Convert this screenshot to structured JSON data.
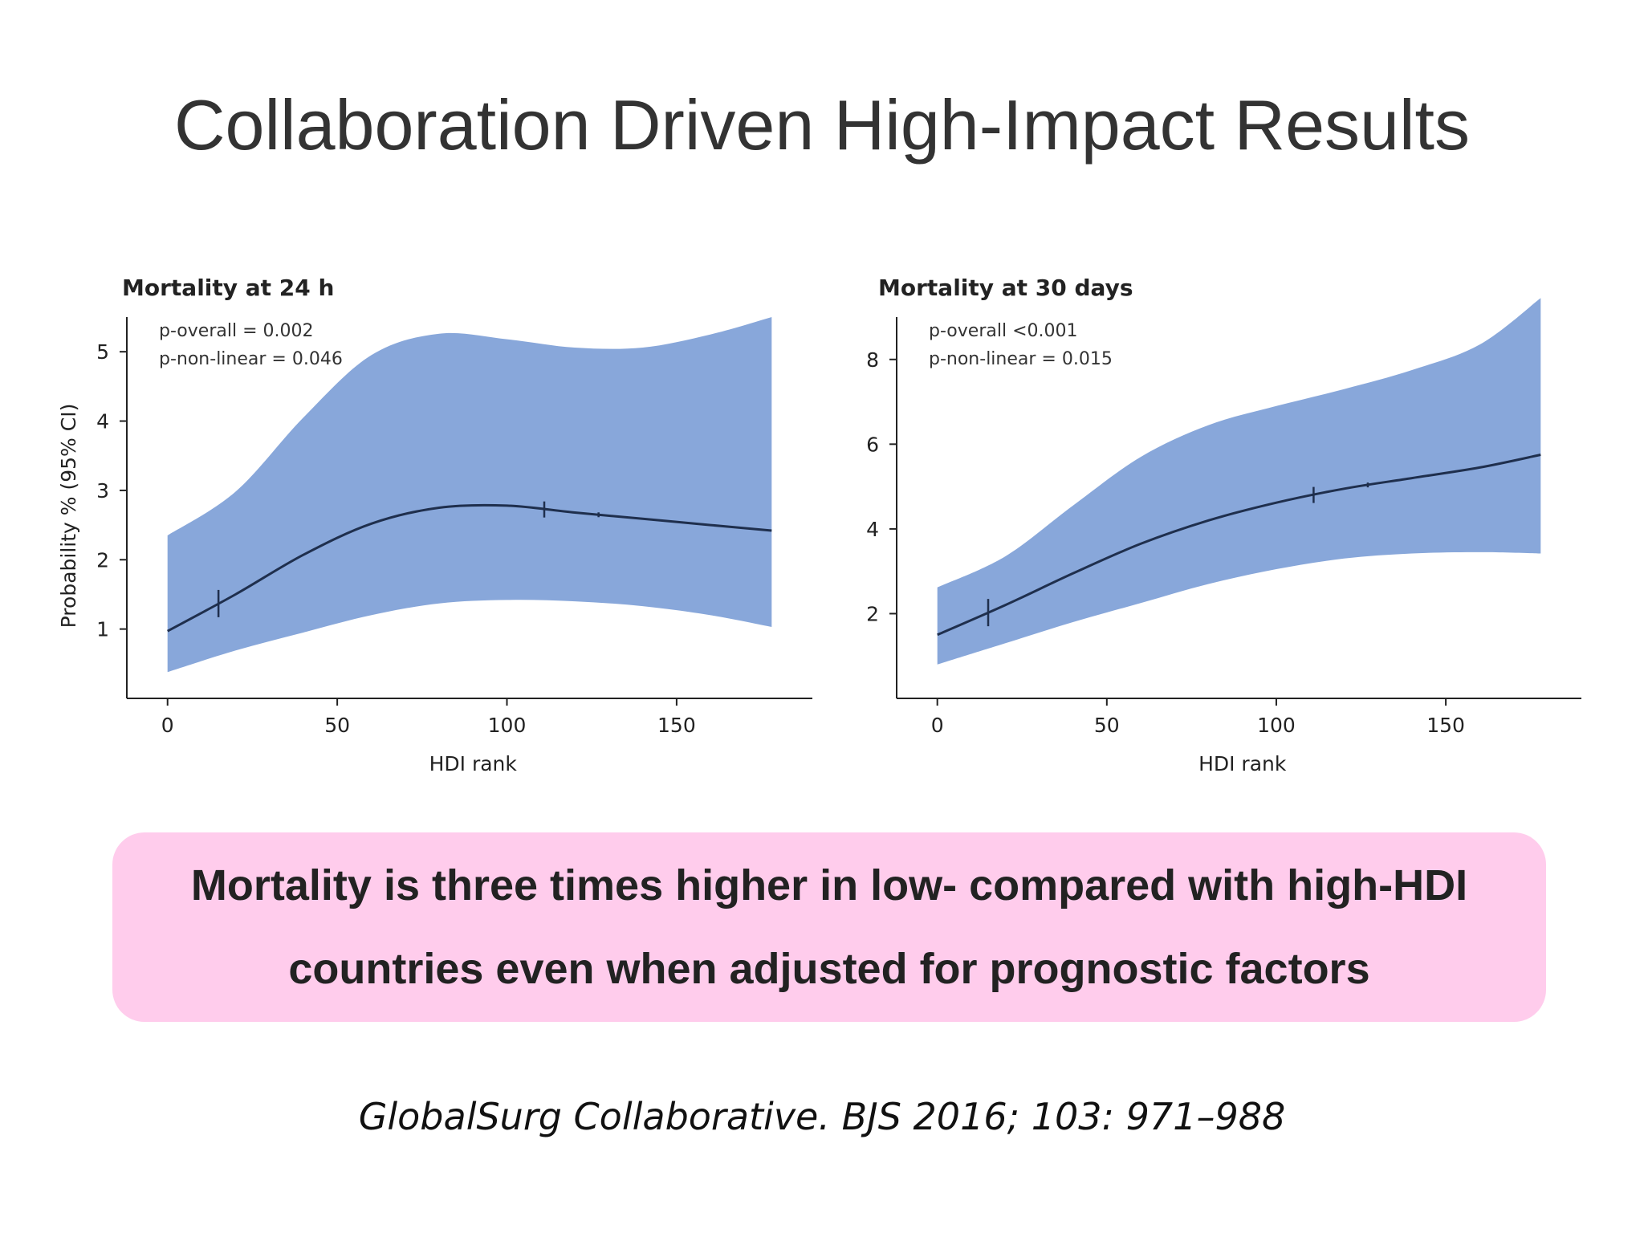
{
  "slide": {
    "title": "Collaboration Driven High-Impact Results",
    "callout": {
      "line1": "Mortality is three times higher in low- compared with high-HDI",
      "line2": "countries even when adjusted for prognostic factors"
    },
    "citation": "GlobalSurg Collaborative. BJS 2016; 103: 971–988"
  },
  "colors": {
    "ci_band": "#88a7da",
    "line": "#1f2f4d",
    "callout_bg": "#ffccec"
  },
  "chart_data": [
    {
      "type": "line",
      "title": "Mortality at 24 h",
      "xlabel": "HDI rank",
      "ylabel": "Probability % (95% CI)",
      "xlim": [
        -12,
        190
      ],
      "ylim": [
        0,
        5.5
      ],
      "xticks": [
        0,
        50,
        100,
        150
      ],
      "yticks": [
        1,
        2,
        3,
        4,
        5
      ],
      "annotations": [
        "p-overall = 0.002",
        "p-non-linear = 0.046"
      ],
      "series": [
        {
          "x": [
            0,
            20,
            40,
            60,
            80,
            100,
            120,
            140,
            160,
            178
          ],
          "y": [
            0.97,
            1.5,
            2.07,
            2.52,
            2.75,
            2.78,
            2.68,
            2.59,
            2.5,
            2.42
          ],
          "lower": [
            0.38,
            0.69,
            0.95,
            1.2,
            1.37,
            1.42,
            1.4,
            1.33,
            1.2,
            1.03
          ],
          "upper": [
            2.35,
            2.98,
            4.05,
            4.95,
            5.26,
            5.18,
            5.06,
            5.06,
            5.25,
            5.5
          ]
        }
      ],
      "marks_x": [
        15,
        111,
        127
      ]
    },
    {
      "type": "line",
      "title": "Mortality at 30 days",
      "xlabel": "HDI rank",
      "ylabel": "",
      "xlim": [
        -12,
        190
      ],
      "ylim": [
        0,
        9
      ],
      "xticks": [
        0,
        50,
        100,
        150
      ],
      "yticks": [
        2,
        4,
        6,
        8
      ],
      "annotations": [
        "p-overall <0.001",
        "p-non-linear = 0.015"
      ],
      "series": [
        {
          "x": [
            0,
            20,
            40,
            60,
            80,
            100,
            120,
            140,
            160,
            178
          ],
          "y": [
            1.5,
            2.2,
            2.95,
            3.65,
            4.2,
            4.62,
            4.95,
            5.2,
            5.45,
            5.75
          ],
          "lower": [
            0.8,
            1.3,
            1.8,
            2.25,
            2.7,
            3.05,
            3.3,
            3.42,
            3.45,
            3.42
          ],
          "upper": [
            2.62,
            3.35,
            4.55,
            5.7,
            6.45,
            6.9,
            7.3,
            7.75,
            8.35,
            9.45
          ]
        }
      ],
      "marks_x": [
        15,
        111,
        127
      ]
    }
  ]
}
